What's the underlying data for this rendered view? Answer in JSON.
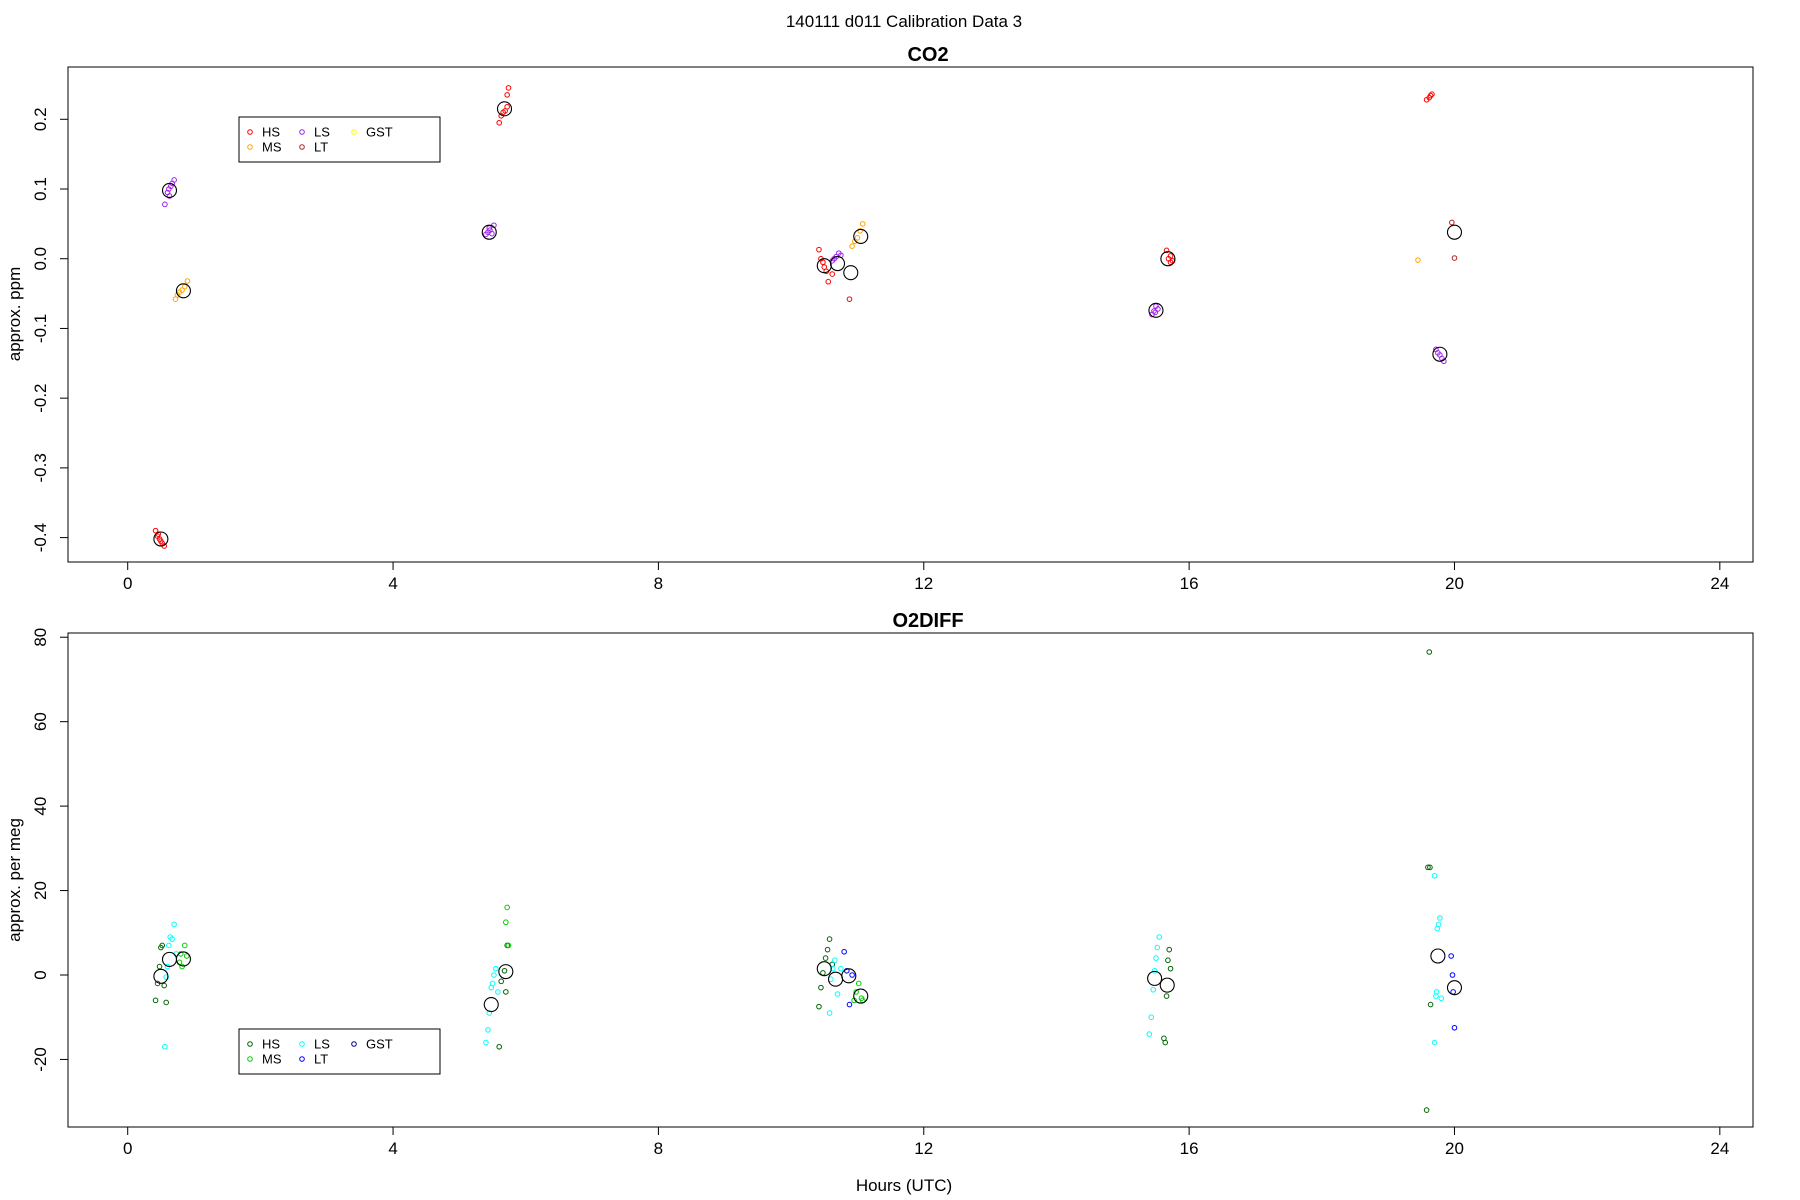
{
  "suptitle": "140111   d011   Calibration Data 3",
  "chart_data": [
    {
      "type": "scatter",
      "title": "CO2",
      "ylabel": "approx. ppm",
      "xlabel": "",
      "xlim": [
        -0.9,
        24.5
      ],
      "ylim": [
        -0.435,
        0.275
      ],
      "xticks": [
        0,
        4,
        8,
        12,
        16,
        20,
        24
      ],
      "xtick_labels": [
        "0",
        "4",
        "8",
        "12",
        "16",
        "20",
        "24"
      ],
      "yticks": [
        -0.4,
        -0.3,
        -0.2,
        -0.1,
        0.0,
        0.1,
        0.2
      ],
      "ytick_labels": [
        "-0.4",
        "-0.3",
        "-0.2",
        "-0.1",
        "0.0",
        "0.1",
        "0.2"
      ],
      "grid": false,
      "legend_position": "top-left",
      "legend": [
        {
          "label": "HS",
          "color": "#ff0000"
        },
        {
          "label": "LS",
          "color": "#a020f0"
        },
        {
          "label": "GST",
          "color": "#ffff00"
        },
        {
          "label": "MS",
          "color": "#ffa500"
        },
        {
          "label": "LT",
          "color": "#b22222"
        }
      ],
      "series": [
        {
          "name": "HS",
          "color": "#ff0000",
          "points": [
            [
              0.42,
              -0.39
            ],
            [
              0.45,
              -0.398
            ],
            [
              0.48,
              -0.402
            ],
            [
              0.5,
              -0.405
            ],
            [
              0.52,
              -0.408
            ],
            [
              0.55,
              -0.412
            ],
            [
              0.46,
              -0.395
            ],
            [
              5.6,
              0.195
            ],
            [
              5.63,
              0.205
            ],
            [
              5.66,
              0.21
            ],
            [
              5.69,
              0.212
            ],
            [
              5.72,
              0.218
            ],
            [
              5.72,
              0.235
            ],
            [
              5.74,
              0.245
            ],
            [
              10.42,
              0.013
            ],
            [
              10.45,
              0.0
            ],
            [
              10.48,
              -0.005
            ],
            [
              10.5,
              -0.012
            ],
            [
              10.53,
              -0.018
            ],
            [
              10.56,
              -0.033
            ],
            [
              10.62,
              -0.022
            ],
            [
              10.88,
              -0.058
            ],
            [
              15.66,
              0.012
            ],
            [
              15.69,
              0.0
            ],
            [
              15.72,
              -0.005
            ],
            [
              15.75,
              -0.003
            ],
            [
              15.72,
              0.004
            ],
            [
              19.58,
              0.228
            ],
            [
              19.62,
              0.231
            ],
            [
              19.64,
              0.234
            ],
            [
              19.66,
              0.236
            ]
          ]
        },
        {
          "name": "LS",
          "color": "#a020f0",
          "points": [
            [
              0.56,
              0.078
            ],
            [
              0.6,
              0.095
            ],
            [
              0.62,
              0.1
            ],
            [
              0.65,
              0.104
            ],
            [
              0.67,
              0.108
            ],
            [
              0.7,
              0.113
            ],
            [
              0.63,
              0.09
            ],
            [
              5.4,
              0.035
            ],
            [
              5.43,
              0.038
            ],
            [
              5.46,
              0.041
            ],
            [
              5.49,
              0.036
            ],
            [
              5.52,
              0.048
            ],
            [
              5.45,
              0.044
            ],
            [
              10.62,
              -0.003
            ],
            [
              10.65,
              0.0
            ],
            [
              10.68,
              0.003
            ],
            [
              10.72,
              0.008
            ],
            [
              10.75,
              0.005
            ],
            [
              15.44,
              -0.08
            ],
            [
              15.47,
              -0.075
            ],
            [
              15.5,
              -0.068
            ],
            [
              15.53,
              -0.072
            ],
            [
              15.49,
              -0.077
            ],
            [
              19.72,
              -0.13
            ],
            [
              19.75,
              -0.135
            ],
            [
              19.78,
              -0.138
            ],
            [
              19.81,
              -0.143
            ],
            [
              19.84,
              -0.147
            ]
          ]
        },
        {
          "name": "MS",
          "color": "#ffa500",
          "points": [
            [
              0.72,
              -0.058
            ],
            [
              0.75,
              -0.052
            ],
            [
              0.78,
              -0.048
            ],
            [
              0.82,
              -0.045
            ],
            [
              0.86,
              -0.04
            ],
            [
              0.9,
              -0.032
            ],
            [
              10.92,
              0.018
            ],
            [
              10.96,
              0.025
            ],
            [
              11.0,
              0.03
            ],
            [
              11.04,
              0.04
            ],
            [
              11.08,
              0.05
            ],
            [
              19.45,
              -0.002
            ]
          ]
        },
        {
          "name": "LT",
          "color": "#b22222",
          "points": [
            [
              19.96,
              0.052
            ],
            [
              20.0,
              0.001
            ]
          ]
        },
        {
          "name": "GST",
          "color": "#ffff00",
          "points": []
        }
      ],
      "means": [
        [
          0.5,
          -0.402
        ],
        [
          0.63,
          0.098
        ],
        [
          0.84,
          -0.046
        ],
        [
          5.45,
          0.038
        ],
        [
          5.68,
          0.215
        ],
        [
          10.5,
          -0.01
        ],
        [
          10.7,
          -0.007
        ],
        [
          10.9,
          -0.02
        ],
        [
          11.05,
          0.032
        ],
        [
          15.5,
          -0.074
        ],
        [
          15.68,
          0.0
        ],
        [
          19.78,
          -0.137
        ],
        [
          20.0,
          0.038
        ]
      ]
    },
    {
      "type": "scatter",
      "title": "O2DIFF",
      "ylabel": "approx. per meg",
      "xlabel": "Hours (UTC)",
      "xlim": [
        -0.9,
        24.5
      ],
      "ylim": [
        -36,
        81
      ],
      "xticks": [
        0,
        4,
        8,
        12,
        16,
        20,
        24
      ],
      "xtick_labels": [
        "0",
        "4",
        "8",
        "12",
        "16",
        "20",
        "24"
      ],
      "yticks": [
        -20,
        0,
        20,
        40,
        60,
        80
      ],
      "ytick_labels": [
        "-20",
        "0",
        "20",
        "40",
        "60",
        "80"
      ],
      "grid": false,
      "legend_position": "bottom-left",
      "legend": [
        {
          "label": "HS",
          "color": "#006400"
        },
        {
          "label": "LS",
          "color": "#00ffff"
        },
        {
          "label": "GST",
          "color": "#00008b"
        },
        {
          "label": "MS",
          "color": "#00cd00"
        },
        {
          "label": "LT",
          "color": "#0000ff"
        }
      ],
      "series": [
        {
          "name": "HS",
          "color": "#006400",
          "points": [
            [
              0.42,
              -6.0
            ],
            [
              0.45,
              -2.0
            ],
            [
              0.48,
              2.0
            ],
            [
              0.5,
              6.5
            ],
            [
              0.52,
              7.0
            ],
            [
              0.55,
              -2.5
            ],
            [
              0.58,
              -6.5
            ],
            [
              5.6,
              -17.0
            ],
            [
              5.63,
              -1.5
            ],
            [
              5.68,
              1.0
            ],
            [
              5.7,
              -4.0
            ],
            [
              5.72,
              7.0
            ],
            [
              10.42,
              -7.5
            ],
            [
              10.45,
              -3.0
            ],
            [
              10.48,
              0.5
            ],
            [
              10.52,
              4.0
            ],
            [
              10.55,
              6.0
            ],
            [
              10.58,
              8.5
            ],
            [
              10.62,
              2.5
            ],
            [
              15.62,
              -15.0
            ],
            [
              15.64,
              -16.0
            ],
            [
              15.66,
              -5.0
            ],
            [
              15.68,
              3.5
            ],
            [
              15.7,
              6.0
            ],
            [
              15.72,
              1.5
            ],
            [
              19.58,
              -32.0
            ],
            [
              19.6,
              25.5
            ],
            [
              19.62,
              76.5
            ],
            [
              19.63,
              25.5
            ],
            [
              19.64,
              -7.0
            ]
          ]
        },
        {
          "name": "LS",
          "color": "#00ffff",
          "points": [
            [
              0.56,
              -17.0
            ],
            [
              0.58,
              -0.5
            ],
            [
              0.6,
              2.0
            ],
            [
              0.62,
              7.0
            ],
            [
              0.64,
              9.0
            ],
            [
              0.67,
              8.5
            ],
            [
              0.7,
              12.0
            ],
            [
              0.73,
              5.0
            ],
            [
              5.4,
              -16.0
            ],
            [
              5.43,
              -13.0
            ],
            [
              5.45,
              -9.0
            ],
            [
              5.48,
              -3.0
            ],
            [
              5.5,
              -2.0
            ],
            [
              5.52,
              0.0
            ],
            [
              5.55,
              1.5
            ],
            [
              5.58,
              -4.0
            ],
            [
              10.58,
              -9.0
            ],
            [
              10.6,
              -1.0
            ],
            [
              10.63,
              1.5
            ],
            [
              10.66,
              3.5
            ],
            [
              10.7,
              -4.5
            ],
            [
              10.75,
              1.5
            ],
            [
              15.4,
              -14.0
            ],
            [
              15.43,
              -10.0
            ],
            [
              15.46,
              -3.5
            ],
            [
              15.48,
              1.0
            ],
            [
              15.5,
              4.0
            ],
            [
              15.52,
              6.5
            ],
            [
              15.55,
              9.0
            ],
            [
              19.7,
              -16.0
            ],
            [
              19.72,
              -5.0
            ],
            [
              19.74,
              11.0
            ],
            [
              19.76,
              12.0
            ],
            [
              19.78,
              13.5
            ],
            [
              19.7,
              23.5
            ],
            [
              19.8,
              -5.5
            ],
            [
              19.73,
              -4.0
            ]
          ]
        },
        {
          "name": "MS",
          "color": "#00cd00",
          "points": [
            [
              0.78,
              3.0
            ],
            [
              0.8,
              5.0
            ],
            [
              0.82,
              2.0
            ],
            [
              0.86,
              7.0
            ],
            [
              0.89,
              4.5
            ],
            [
              5.7,
              12.5
            ],
            [
              5.72,
              16.0
            ],
            [
              5.74,
              7.0
            ],
            [
              10.95,
              -6.0
            ],
            [
              10.98,
              -4.0
            ],
            [
              11.02,
              -2.0
            ],
            [
              11.06,
              -5.5
            ],
            [
              11.08,
              -6.0
            ]
          ]
        },
        {
          "name": "LT",
          "color": "#0000ff",
          "points": [
            [
              10.8,
              5.5
            ],
            [
              10.84,
              1.0
            ],
            [
              10.88,
              -7.0
            ],
            [
              10.92,
              0.0
            ],
            [
              19.95,
              4.5
            ],
            [
              19.97,
              0.0
            ],
            [
              20.0,
              -12.5
            ],
            [
              19.98,
              -4.0
            ]
          ]
        },
        {
          "name": "GST",
          "color": "#00008b",
          "points": []
        }
      ],
      "means": [
        [
          0.5,
          -0.3
        ],
        [
          0.63,
          3.7
        ],
        [
          0.84,
          3.8
        ],
        [
          5.48,
          -7.0
        ],
        [
          5.7,
          0.8
        ],
        [
          10.5,
          1.5
        ],
        [
          10.67,
          -1.0
        ],
        [
          10.87,
          -0.2
        ],
        [
          11.05,
          -5.0
        ],
        [
          15.48,
          -0.8
        ],
        [
          15.67,
          -2.4
        ],
        [
          19.75,
          4.5
        ],
        [
          20.0,
          -3.0
        ]
      ]
    }
  ]
}
